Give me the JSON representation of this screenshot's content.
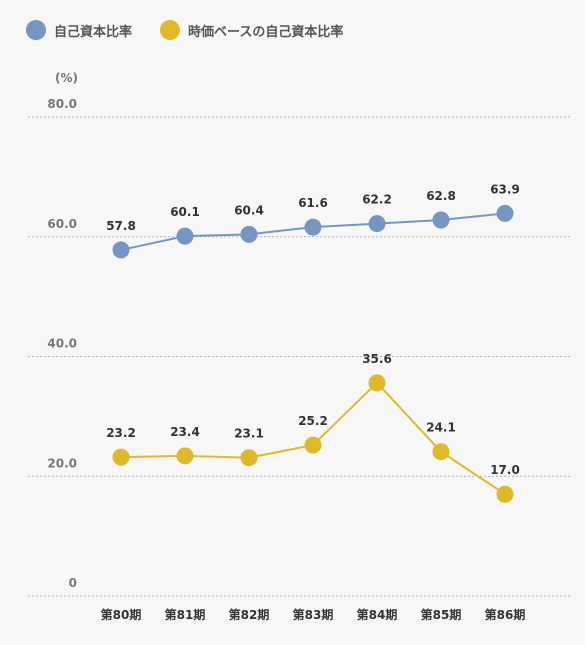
{
  "chart_data": {
    "type": "line",
    "unit_label": "(%)",
    "categories": [
      "第80期",
      "第81期",
      "第82期",
      "第83期",
      "第84期",
      "第85期",
      "第86期"
    ],
    "ylim": [
      0,
      80
    ],
    "yticks": [
      "0",
      "20.0",
      "40.0",
      "60.0",
      "80.0"
    ],
    "grid": true,
    "legend_position": "top-left",
    "series": [
      {
        "name": "自己資本比率",
        "color": "#7596c2",
        "values": [
          57.8,
          60.1,
          60.4,
          61.6,
          62.2,
          62.8,
          63.9
        ],
        "labels": [
          "57.8",
          "60.1",
          "60.4",
          "61.6",
          "62.2",
          "62.8",
          "63.9"
        ]
      },
      {
        "name": "時価ベースの自己資本比率",
        "color": "#e0b92a",
        "values": [
          23.2,
          23.4,
          23.1,
          25.2,
          35.6,
          24.1,
          17.0
        ],
        "labels": [
          "23.2",
          "23.4",
          "23.1",
          "25.2",
          "35.6",
          "24.1",
          "17.0"
        ]
      }
    ]
  }
}
